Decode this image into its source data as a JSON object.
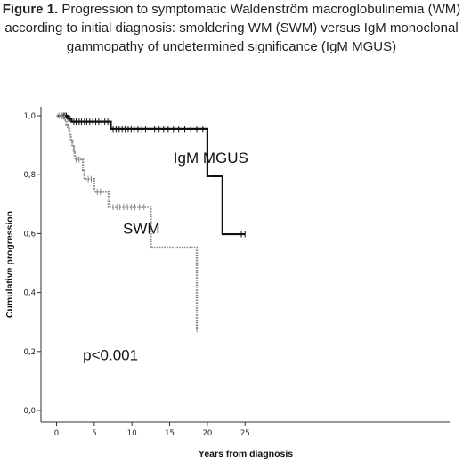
{
  "figure": {
    "label": "Figure 1.",
    "caption_text": " Progression to symptomatic Waldenström macroglobulinemia (WM) according to initial  diagnosis: smoldering WM (SWM) versus IgM monoclonal gammopathy of undetermined significance (IgM MGUS)"
  },
  "chart_data": {
    "type": "line",
    "subtype": "kaplan-meier step curves",
    "xlabel": "Years from diagnosis",
    "ylabel": "Cumulative progression",
    "xlim": [
      -1,
      26
    ],
    "ylim": [
      0,
      1.0
    ],
    "xticks": [
      0,
      5,
      10,
      15,
      20,
      25
    ],
    "xtick_labels": [
      "0",
      "5",
      "10",
      "15",
      "20",
      "25"
    ],
    "yticks": [
      0.0,
      0.2,
      0.4,
      0.6,
      0.8,
      1.0
    ],
    "ytick_labels": [
      "0,0",
      "0,2",
      "0,4",
      "0,6",
      "0,8",
      "1,0"
    ],
    "grid": false,
    "annotations": [
      {
        "text": "IgM MGUS",
        "x": 15.5,
        "y": 0.84
      },
      {
        "text": "SWM",
        "x": 8.8,
        "y": 0.6
      },
      {
        "text": "p<0.001",
        "x": 3.5,
        "y": 0.17
      }
    ],
    "series": [
      {
        "name": "IgM MGUS",
        "color": "#111111",
        "style": "solid",
        "steps": [
          [
            0,
            1.0
          ],
          [
            1.5,
            0.99
          ],
          [
            2.0,
            0.98
          ],
          [
            7.2,
            0.955
          ],
          [
            20.0,
            0.955
          ],
          [
            20.0,
            0.795
          ],
          [
            22.0,
            0.795
          ],
          [
            22.0,
            0.598
          ],
          [
            25.0,
            0.598
          ]
        ],
        "censored": [
          0.3,
          0.6,
          0.9,
          1.1,
          1.3,
          1.6,
          1.8,
          2.3,
          2.6,
          3.0,
          3.3,
          3.7,
          4.0,
          4.4,
          4.8,
          5.2,
          5.6,
          6.0,
          6.4,
          6.8,
          7.5,
          7.9,
          8.3,
          8.7,
          9.1,
          9.5,
          9.9,
          10.3,
          10.8,
          11.3,
          11.8,
          12.4,
          13.0,
          13.6,
          14.2,
          14.8,
          15.5,
          16.2,
          17.0,
          17.8,
          18.6,
          19.4,
          21.0,
          24.5,
          25.0
        ]
      },
      {
        "name": "SWM",
        "color": "#8a8a8a",
        "style": "dotted",
        "steps": [
          [
            0,
            1.0
          ],
          [
            1.0,
            1.0
          ],
          [
            1.0,
            0.985
          ],
          [
            1.3,
            0.985
          ],
          [
            1.3,
            0.97
          ],
          [
            1.5,
            0.97
          ],
          [
            1.5,
            0.955
          ],
          [
            1.7,
            0.955
          ],
          [
            1.7,
            0.935
          ],
          [
            1.9,
            0.935
          ],
          [
            1.9,
            0.915
          ],
          [
            2.1,
            0.915
          ],
          [
            2.1,
            0.895
          ],
          [
            2.3,
            0.895
          ],
          [
            2.3,
            0.875
          ],
          [
            2.4,
            0.875
          ],
          [
            2.4,
            0.852
          ],
          [
            3.5,
            0.852
          ],
          [
            3.5,
            0.815
          ],
          [
            3.7,
            0.815
          ],
          [
            3.7,
            0.785
          ],
          [
            5.0,
            0.785
          ],
          [
            5.0,
            0.742
          ],
          [
            6.9,
            0.742
          ],
          [
            6.9,
            0.69
          ],
          [
            12.5,
            0.69
          ],
          [
            12.5,
            0.553
          ],
          [
            18.6,
            0.553
          ],
          [
            18.6,
            0.275
          ]
        ],
        "censored": [
          0.3,
          0.7,
          2.6,
          3.0,
          4.2,
          4.6,
          5.4,
          5.8,
          7.5,
          8.0,
          8.4,
          8.9,
          9.4,
          9.9,
          10.4,
          11.0,
          11.6,
          18.6
        ]
      }
    ]
  }
}
